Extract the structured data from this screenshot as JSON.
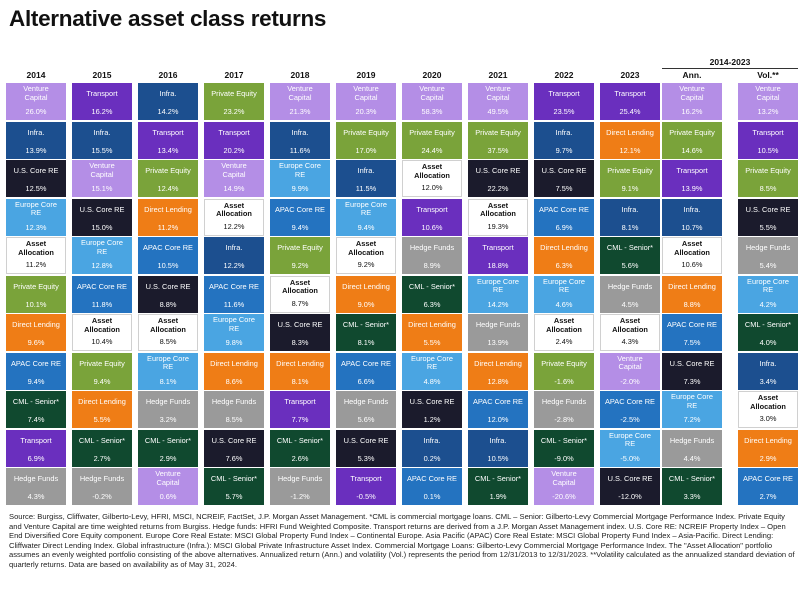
{
  "title": "Alternative asset class returns",
  "period_label": "2014-2023",
  "footnote": "Source: Burgiss, Cliffwater, Gilberto-Levy, HFRI, MSCI, NCREIF, FactSet, J.P. Morgan Asset Management. *CML is commercial mortgage loans. CML – Senior: Gilberto-Levy Commercial Mortgage Performance Index. Private Equity and Venture Capital are time weighted returns from Burgiss. Hedge funds: HFRI Fund Weighted Composite. Transport returns are derived from a J.P. Morgan Asset Management index. U.S. Core RE: NCREIF Property Index – Open End Diversified Core Equity component. Europe Core Real Estate: MSCI Global Property Fund Index – Continental Europe. Asia Pacific (APAC) Core Real Estate: MSCI Global Property Fund Index – Asia-Pacific. Direct Lending: Cliffwater Direct Lending Index. Global infrastructure (Infra.): MSCI Global Private Infrastructure Asset Index. Commercial Mortgage Loans: Gilberto-Levy Commercial Mortgage Performance Index. The \"Asset Allocation\" portfolio assumes an evenly weighted portfolio consisting of the above alternatives. Annualized return (Ann.) and volatility (Vol.) represents the period from 12/31/2013 to 12/31/2023. **Volatility calculated as the annualized standard deviation of quarterly returns. Data are based on availability as of May 31, 2024.",
  "colors": {
    "Venture Capital": "#b48ee6",
    "Transport": "#6a2fbe",
    "Infra.": "#1c4f8f",
    "Private Equity": "#7aa33a",
    "U.S. Core RE": "#1b1b2c",
    "Europe Core RE": "#4aa5e2",
    "Asset Allocation": "#ffffff",
    "APAC Core RE": "#2473c0",
    "Hedge Funds": "#9a9a9a",
    "Direct Lending": "#ef7d16",
    "CML - Senior*": "#10492f"
  },
  "chart_data": {
    "type": "table",
    "title": "Alternative asset class returns",
    "columns": [
      "2014",
      "2015",
      "2016",
      "2017",
      "2018",
      "2019",
      "2020",
      "2021",
      "2022",
      "2023",
      "Ann.",
      "Vol.**"
    ],
    "ranked": [
      [
        {
          "name": "Venture Capital",
          "value": "26.0%"
        },
        {
          "name": "Infra.",
          "value": "13.9%"
        },
        {
          "name": "U.S. Core RE",
          "value": "12.5%"
        },
        {
          "name": "Europe Core RE",
          "value": "12.3%"
        },
        {
          "name": "Asset Allocation",
          "value": "11.2%"
        },
        {
          "name": "Private Equity",
          "value": "10.1%"
        },
        {
          "name": "Direct Lending",
          "value": "9.6%"
        },
        {
          "name": "APAC Core RE",
          "value": "9.4%"
        },
        {
          "name": "CML - Senior*",
          "value": "7.4%"
        },
        {
          "name": "Transport",
          "value": "6.9%"
        },
        {
          "name": "Hedge Funds",
          "value": "4.3%"
        }
      ],
      [
        {
          "name": "Transport",
          "value": "16.2%"
        },
        {
          "name": "Infra.",
          "value": "15.5%"
        },
        {
          "name": "Venture Capital",
          "value": "15.1%"
        },
        {
          "name": "U.S. Core RE",
          "value": "15.0%"
        },
        {
          "name": "Europe Core RE",
          "value": "12.8%"
        },
        {
          "name": "APAC Core RE",
          "value": "11.8%"
        },
        {
          "name": "Asset Allocation",
          "value": "10.4%"
        },
        {
          "name": "Private Equity",
          "value": "9.4%"
        },
        {
          "name": "Direct Lending",
          "value": "5.5%"
        },
        {
          "name": "CML - Senior*",
          "value": "2.7%"
        },
        {
          "name": "Hedge Funds",
          "value": "-0.2%"
        }
      ],
      [
        {
          "name": "Infra.",
          "value": "14.2%"
        },
        {
          "name": "Transport",
          "value": "13.4%"
        },
        {
          "name": "Private Equity",
          "value": "12.4%"
        },
        {
          "name": "Direct Lending",
          "value": "11.2%"
        },
        {
          "name": "APAC Core RE",
          "value": "10.5%"
        },
        {
          "name": "U.S. Core RE",
          "value": "8.8%"
        },
        {
          "name": "Asset Allocation",
          "value": "8.5%"
        },
        {
          "name": "Europe Core RE",
          "value": "8.1%"
        },
        {
          "name": "Hedge Funds",
          "value": "3.2%"
        },
        {
          "name": "CML - Senior*",
          "value": "2.9%"
        },
        {
          "name": "Venture Capital",
          "value": "0.6%"
        }
      ],
      [
        {
          "name": "Private Equity",
          "value": "23.2%"
        },
        {
          "name": "Transport",
          "value": "20.2%"
        },
        {
          "name": "Venture Capital",
          "value": "14.9%"
        },
        {
          "name": "Asset Allocation",
          "value": "12.2%"
        },
        {
          "name": "Infra.",
          "value": "12.2%"
        },
        {
          "name": "APAC Core RE",
          "value": "11.6%"
        },
        {
          "name": "Europe Core RE",
          "value": "9.8%"
        },
        {
          "name": "Direct Lending",
          "value": "8.6%"
        },
        {
          "name": "Hedge Funds",
          "value": "8.5%"
        },
        {
          "name": "U.S. Core RE",
          "value": "7.6%"
        },
        {
          "name": "CML - Senior*",
          "value": "5.7%"
        }
      ],
      [
        {
          "name": "Venture Capital",
          "value": "21.3%"
        },
        {
          "name": "Infra.",
          "value": "11.6%"
        },
        {
          "name": "Europe Core RE",
          "value": "9.9%"
        },
        {
          "name": "APAC Core RE",
          "value": "9.4%"
        },
        {
          "name": "Private Equity",
          "value": "9.2%"
        },
        {
          "name": "Asset Allocation",
          "value": "8.7%"
        },
        {
          "name": "U.S. Core RE",
          "value": "8.3%"
        },
        {
          "name": "Direct Lending",
          "value": "8.1%"
        },
        {
          "name": "Transport",
          "value": "7.7%"
        },
        {
          "name": "CML - Senior*",
          "value": "2.6%"
        },
        {
          "name": "Hedge Funds",
          "value": "-1.2%"
        }
      ],
      [
        {
          "name": "Venture Capital",
          "value": "20.3%"
        },
        {
          "name": "Private Equity",
          "value": "17.0%"
        },
        {
          "name": "Infra.",
          "value": "11.5%"
        },
        {
          "name": "Europe Core RE",
          "value": "9.4%"
        },
        {
          "name": "Asset Allocation",
          "value": "9.2%"
        },
        {
          "name": "Direct Lending",
          "value": "9.0%"
        },
        {
          "name": "CML - Senior*",
          "value": "8.1%"
        },
        {
          "name": "APAC Core RE",
          "value": "6.6%"
        },
        {
          "name": "Hedge Funds",
          "value": "5.6%"
        },
        {
          "name": "U.S. Core RE",
          "value": "5.3%"
        },
        {
          "name": "Transport",
          "value": "-0.5%"
        }
      ],
      [
        {
          "name": "Venture Capital",
          "value": "58.3%"
        },
        {
          "name": "Private Equity",
          "value": "24.4%"
        },
        {
          "name": "Asset Allocation",
          "value": "12.0%"
        },
        {
          "name": "Transport",
          "value": "10.6%"
        },
        {
          "name": "Hedge Funds",
          "value": "8.9%"
        },
        {
          "name": "CML - Senior*",
          "value": "6.3%"
        },
        {
          "name": "Direct Lending",
          "value": "5.5%"
        },
        {
          "name": "Europe Core RE",
          "value": "4.8%"
        },
        {
          "name": "U.S. Core RE",
          "value": "1.2%"
        },
        {
          "name": "Infra.",
          "value": "0.2%"
        },
        {
          "name": "APAC Core RE",
          "value": "0.1%"
        }
      ],
      [
        {
          "name": "Venture Capital",
          "value": "49.5%"
        },
        {
          "name": "Private Equity",
          "value": "37.5%"
        },
        {
          "name": "U.S. Core RE",
          "value": "22.2%"
        },
        {
          "name": "Asset Allocation",
          "value": "19.3%"
        },
        {
          "name": "Transport",
          "value": "18.8%"
        },
        {
          "name": "Europe Core RE",
          "value": "14.2%"
        },
        {
          "name": "Hedge Funds",
          "value": "13.9%"
        },
        {
          "name": "Direct Lending",
          "value": "12.8%"
        },
        {
          "name": "APAC Core RE",
          "value": "12.0%"
        },
        {
          "name": "Infra.",
          "value": "10.5%"
        },
        {
          "name": "CML - Senior*",
          "value": "1.9%"
        }
      ],
      [
        {
          "name": "Transport",
          "value": "23.5%"
        },
        {
          "name": "Infra.",
          "value": "9.7%"
        },
        {
          "name": "U.S. Core RE",
          "value": "7.5%"
        },
        {
          "name": "APAC Core RE",
          "value": "6.9%"
        },
        {
          "name": "Direct Lending",
          "value": "6.3%"
        },
        {
          "name": "Europe Core RE",
          "value": "4.6%"
        },
        {
          "name": "Asset Allocation",
          "value": "2.4%"
        },
        {
          "name": "Private Equity",
          "value": "-1.6%"
        },
        {
          "name": "Hedge Funds",
          "value": "-2.8%"
        },
        {
          "name": "CML - Senior*",
          "value": "-9.0%"
        },
        {
          "name": "Venture Capital",
          "value": "-20.6%"
        }
      ],
      [
        {
          "name": "Transport",
          "value": "25.4%"
        },
        {
          "name": "Direct Lending",
          "value": "12.1%"
        },
        {
          "name": "Private Equity",
          "value": "9.1%"
        },
        {
          "name": "Infra.",
          "value": "8.1%"
        },
        {
          "name": "CML - Senior*",
          "value": "5.6%"
        },
        {
          "name": "Hedge Funds",
          "value": "4.5%"
        },
        {
          "name": "Asset Allocation",
          "value": "4.3%"
        },
        {
          "name": "Venture Capital",
          "value": "-2.0%"
        },
        {
          "name": "APAC Core RE",
          "value": "-2.5%"
        },
        {
          "name": "Europe Core RE",
          "value": "-5.0%"
        },
        {
          "name": "U.S. Core RE",
          "value": "-12.0%"
        }
      ],
      [
        {
          "name": "Venture Capital",
          "value": "16.2%"
        },
        {
          "name": "Private Equity",
          "value": "14.6%"
        },
        {
          "name": "Transport",
          "value": "13.9%"
        },
        {
          "name": "Infra.",
          "value": "10.7%"
        },
        {
          "name": "Asset Allocation",
          "value": "10.6%"
        },
        {
          "name": "Direct Lending",
          "value": "8.8%"
        },
        {
          "name": "APAC Core RE",
          "value": "7.5%"
        },
        {
          "name": "U.S. Core RE",
          "value": "7.3%"
        },
        {
          "name": "Europe Core RE",
          "value": "7.2%"
        },
        {
          "name": "Hedge Funds",
          "value": "4.4%"
        },
        {
          "name": "CML - Senior*",
          "value": "3.3%"
        }
      ],
      [
        {
          "name": "Venture Capital",
          "value": "13.2%"
        },
        {
          "name": "Transport",
          "value": "10.5%"
        },
        {
          "name": "Private Equity",
          "value": "8.5%"
        },
        {
          "name": "U.S. Core RE",
          "value": "5.5%"
        },
        {
          "name": "Hedge Funds",
          "value": "5.4%"
        },
        {
          "name": "Europe Core RE",
          "value": "4.2%"
        },
        {
          "name": "CML - Senior*",
          "value": "4.0%"
        },
        {
          "name": "Infra.",
          "value": "3.4%"
        },
        {
          "name": "Asset Allocation",
          "value": "3.0%"
        },
        {
          "name": "Direct Lending",
          "value": "2.9%"
        },
        {
          "name": "APAC Core RE",
          "value": "2.7%"
        }
      ]
    ]
  }
}
